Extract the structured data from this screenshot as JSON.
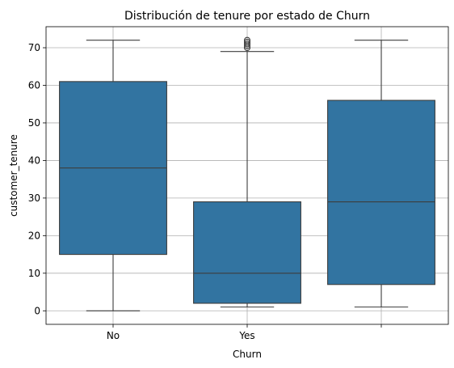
{
  "chart_data": {
    "type": "box",
    "title": "Distribución de tenure por estado de Churn",
    "xlabel": "Churn",
    "ylabel": "customer_tenure",
    "categories": [
      "No",
      "Yes",
      ""
    ],
    "ylim": [
      -3.6,
      75.6
    ],
    "yticks": [
      0,
      10,
      20,
      30,
      40,
      50,
      60,
      70
    ],
    "grid": true,
    "colors": {
      "box": "#3274a1",
      "line": "#3d3d3d",
      "grid": "#b0b0b0"
    },
    "boxes": [
      {
        "category": "No",
        "whisker_low": 0,
        "q1": 15,
        "median": 38,
        "q3": 61,
        "whisker_high": 72,
        "outliers": []
      },
      {
        "category": "Yes",
        "whisker_low": 1,
        "q1": 2,
        "median": 10,
        "q3": 29,
        "whisker_high": 69,
        "outliers": [
          70,
          70.5,
          71,
          71.5,
          72
        ]
      },
      {
        "category": "",
        "whisker_low": 1,
        "q1": 7,
        "median": 29,
        "q3": 56,
        "whisker_high": 72,
        "outliers": []
      }
    ]
  }
}
